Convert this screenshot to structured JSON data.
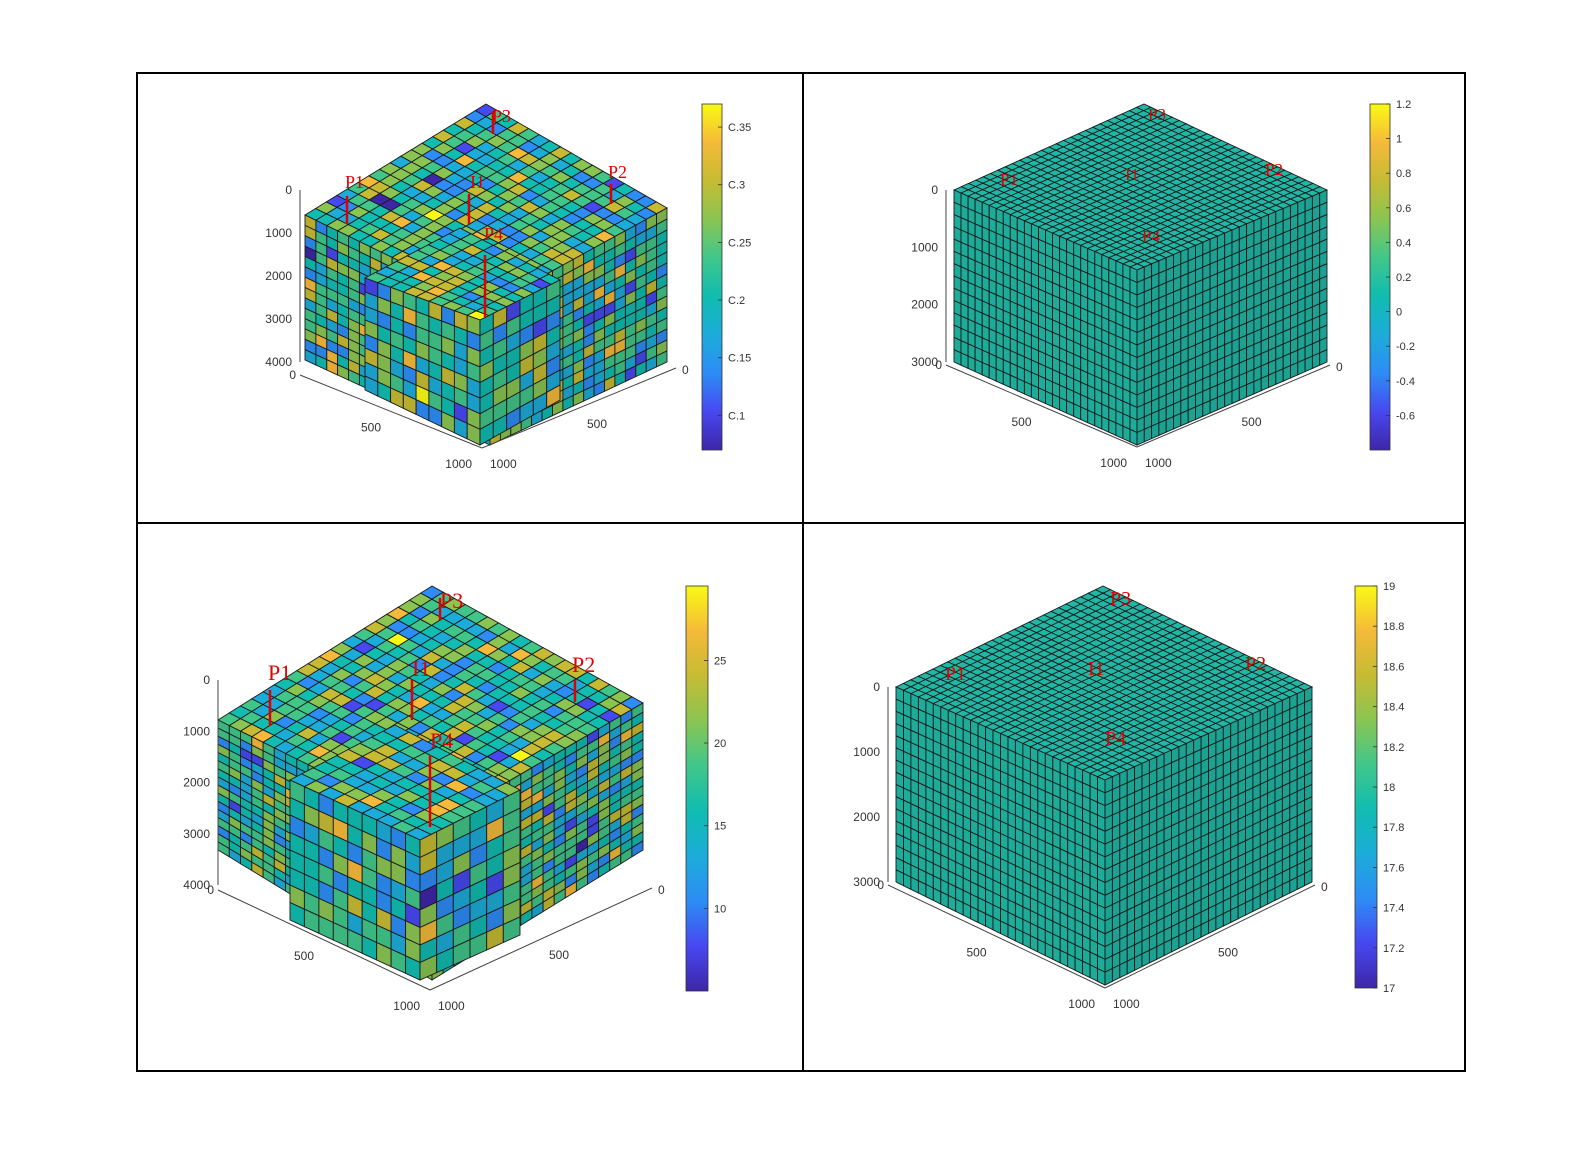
{
  "panels": [
    {
      "id": "panel-tl",
      "geometry": "deformed",
      "z_ticks": [
        "0",
        "1000",
        "2000",
        "3000",
        "4000"
      ],
      "x_ticks": [
        "0",
        "500",
        "1000"
      ],
      "y_ticks": [
        "1000",
        "500",
        "0"
      ],
      "colorbar": {
        "ticks": [
          "C.35",
          "C.3",
          "C.25",
          "C.2",
          "C.15",
          "C.1"
        ],
        "value_range": [
          0.07,
          0.37
        ]
      },
      "wells": [
        "P1",
        "P3",
        "I1",
        "P2",
        "P4"
      ]
    },
    {
      "id": "panel-tr",
      "geometry": "cube",
      "z_ticks": [
        "0",
        "1000",
        "2000",
        "3000"
      ],
      "x_ticks": [
        "0",
        "500",
        "1000"
      ],
      "y_ticks": [
        "1000",
        "500",
        "0"
      ],
      "colorbar": {
        "ticks": [
          "1.2",
          "1",
          "0.8",
          "0.6",
          "0.4",
          "0.2",
          "0",
          "-0.2",
          "-0.4",
          "-0.6"
        ],
        "value_range": [
          -0.8,
          1.2
        ]
      },
      "wells": [
        "P1",
        "P3",
        "I1",
        "P2",
        "P4"
      ]
    },
    {
      "id": "panel-bl",
      "geometry": "deformed",
      "z_ticks": [
        "0",
        "1000",
        "2000",
        "3000",
        "4000"
      ],
      "x_ticks": [
        "0",
        "500",
        "1000"
      ],
      "y_ticks": [
        "1000",
        "500",
        "0"
      ],
      "colorbar": {
        "ticks": [
          "25",
          "20",
          "15",
          "10"
        ],
        "value_range": [
          5,
          29.5
        ]
      },
      "wells": [
        "P1",
        "P3",
        "I1",
        "P2",
        "P4"
      ]
    },
    {
      "id": "panel-br",
      "geometry": "cube",
      "z_ticks": [
        "0",
        "1000",
        "2000",
        "3000"
      ],
      "x_ticks": [
        "0",
        "500",
        "1000"
      ],
      "y_ticks": [
        "1000",
        "500",
        "0"
      ],
      "colorbar": {
        "ticks": [
          "19",
          "18.8",
          "18.6",
          "18.4",
          "18.2",
          "18",
          "17.8",
          "17.6",
          "17.4",
          "17.2",
          "17"
        ],
        "value_range": [
          17,
          19
        ]
      },
      "wells": [
        "P1",
        "P3",
        "I1",
        "P2",
        "P4"
      ]
    }
  ],
  "colors": {
    "uniform_cell": "#1fb8a6",
    "well_marker": "#e00000",
    "parula": [
      "#3e26a8",
      "#4748f0",
      "#2d8cf5",
      "#1cacd9",
      "#11bcb0",
      "#41c68a",
      "#8ac552",
      "#c6bb33",
      "#f5ba3a",
      "#f9fa14"
    ]
  }
}
